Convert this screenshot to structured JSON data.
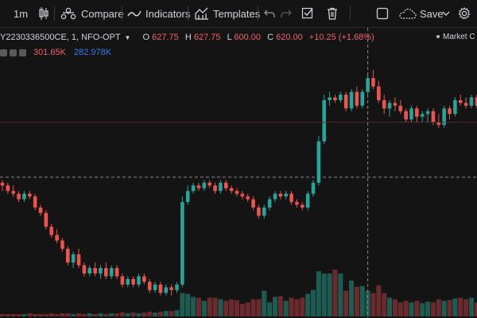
{
  "toolbar": {
    "interval": "1m",
    "compare_label": "Compare",
    "indicators_label": "Indicators",
    "templates_label": "Templates",
    "save_label": "Save",
    "icons": [
      "candles-icon",
      "compare-icon",
      "indicators-icon",
      "templates-icon",
      "undo-icon",
      "redo-icon",
      "checkbox-icon",
      "trash-icon",
      "layout-icon",
      "cloud-icon",
      "chevron-down-icon",
      "settings-icon"
    ]
  },
  "legend": {
    "symbol": "Y2230336500CE, 1, NFO-OPT",
    "open_label": "O",
    "open": "627.75",
    "high_label": "H",
    "high": "627.75",
    "low_label": "L",
    "low": "600.00",
    "close_label": "C",
    "close": "620.00",
    "change": "+10.25 (+1.68%)",
    "market_status": "Market C"
  },
  "volume": {
    "value_a": "301.65K",
    "value_b": "282.978K"
  },
  "colors": {
    "up": "#26a69a",
    "down": "#ef5350",
    "background": "#141414",
    "volume_blue": "#3d7bf2"
  },
  "chart_data": {
    "type": "candlestick",
    "series": [
      {
        "name": "price",
        "ohlc": [
          [
            0,
            600,
            601,
            597,
            599
          ],
          [
            1,
            599,
            600,
            596,
            597
          ],
          [
            2,
            597,
            599,
            595,
            596
          ],
          [
            3,
            596,
            597,
            593,
            594
          ],
          [
            4,
            594,
            597,
            593,
            596
          ],
          [
            5,
            596,
            597,
            594,
            595
          ],
          [
            6,
            595,
            596,
            590,
            591
          ],
          [
            7,
            591,
            592,
            588,
            589
          ],
          [
            8,
            589,
            590,
            583,
            584
          ],
          [
            9,
            584,
            585,
            580,
            581
          ],
          [
            10,
            581,
            583,
            578,
            579
          ],
          [
            11,
            579,
            580,
            575,
            576
          ],
          [
            12,
            576,
            577,
            570,
            571
          ],
          [
            13,
            571,
            575,
            569,
            574
          ],
          [
            14,
            574,
            576,
            569,
            570
          ],
          [
            15,
            570,
            571,
            566,
            567
          ],
          [
            16,
            567,
            570,
            566,
            569
          ],
          [
            17,
            569,
            571,
            566,
            567
          ],
          [
            18,
            567,
            570,
            565,
            569
          ],
          [
            19,
            569,
            571,
            565,
            566
          ],
          [
            20,
            566,
            570,
            565,
            569
          ],
          [
            21,
            569,
            570,
            565,
            566
          ],
          [
            22,
            566,
            567,
            562,
            563
          ],
          [
            23,
            563,
            566,
            562,
            565
          ],
          [
            24,
            565,
            566,
            562,
            563
          ],
          [
            25,
            563,
            567,
            562,
            566
          ],
          [
            26,
            566,
            567,
            563,
            564
          ],
          [
            27,
            564,
            565,
            560,
            561
          ],
          [
            28,
            561,
            564,
            560,
            563
          ],
          [
            29,
            563,
            564,
            559,
            560
          ],
          [
            30,
            560,
            563,
            559,
            562
          ],
          [
            31,
            562,
            563,
            559,
            561
          ],
          [
            32,
            561,
            564,
            560,
            563
          ],
          [
            33,
            563,
            595,
            562,
            593
          ],
          [
            34,
            593,
            599,
            592,
            597
          ],
          [
            35,
            597,
            600,
            596,
            599
          ],
          [
            36,
            599,
            600,
            597,
            598
          ],
          [
            37,
            598,
            601,
            597,
            600
          ],
          [
            38,
            600,
            601,
            598,
            599
          ],
          [
            39,
            599,
            600,
            596,
            597
          ],
          [
            40,
            597,
            601,
            596,
            600
          ],
          [
            41,
            600,
            601,
            597,
            598
          ],
          [
            42,
            598,
            599,
            596,
            597
          ],
          [
            43,
            597,
            598,
            595,
            596
          ],
          [
            44,
            596,
            597,
            594,
            595
          ],
          [
            45,
            595,
            596,
            593,
            594
          ],
          [
            46,
            594,
            595,
            590,
            591
          ],
          [
            47,
            591,
            592,
            587,
            588
          ],
          [
            48,
            588,
            592,
            587,
            591
          ],
          [
            49,
            591,
            595,
            590,
            594
          ],
          [
            50,
            594,
            597,
            593,
            596
          ],
          [
            51,
            596,
            597,
            594,
            595
          ],
          [
            52,
            595,
            597,
            594,
            596
          ],
          [
            53,
            596,
            597,
            592,
            593
          ],
          [
            54,
            593,
            594,
            591,
            592
          ],
          [
            55,
            592,
            593,
            590,
            591
          ],
          [
            56,
            591,
            597,
            590,
            596
          ],
          [
            57,
            596,
            601,
            595,
            600
          ],
          [
            58,
            600,
            617,
            599,
            615
          ],
          [
            59,
            615,
            632,
            614,
            630
          ],
          [
            60,
            630,
            633,
            628,
            631
          ],
          [
            61,
            631,
            632,
            629,
            630
          ],
          [
            62,
            630,
            633,
            629,
            632
          ],
          [
            63,
            632,
            633,
            626,
            627
          ],
          [
            64,
            627,
            634,
            626,
            633
          ],
          [
            65,
            633,
            635,
            627,
            628
          ],
          [
            66,
            628,
            634,
            627,
            633
          ],
          [
            67,
            633,
            639,
            632,
            638
          ],
          [
            68,
            638,
            641,
            634,
            635
          ],
          [
            69,
            635,
            637,
            629,
            630
          ],
          [
            70,
            630,
            632,
            625,
            627
          ],
          [
            71,
            627,
            630,
            624,
            629
          ],
          [
            72,
            629,
            631,
            626,
            628
          ],
          [
            73,
            628,
            630,
            625,
            626
          ],
          [
            74,
            626,
            627,
            622,
            623
          ],
          [
            75,
            623,
            628,
            622,
            627
          ],
          [
            76,
            627,
            628,
            622,
            624
          ],
          [
            77,
            624,
            626,
            622,
            625
          ],
          [
            78,
            625,
            627,
            622,
            626
          ],
          [
            79,
            626,
            627,
            621,
            622
          ],
          [
            80,
            622,
            625,
            620,
            621
          ],
          [
            81,
            621,
            628,
            620,
            627
          ],
          [
            82,
            627,
            628,
            623,
            625
          ],
          [
            83,
            625,
            631,
            624,
            630
          ],
          [
            84,
            630,
            632,
            628,
            629
          ],
          [
            85,
            629,
            631,
            627,
            628
          ],
          [
            86,
            628,
            632,
            627,
            631
          ],
          [
            87,
            631,
            632,
            627,
            628
          ]
        ]
      },
      {
        "name": "volume",
        "values": [
          3,
          3,
          3,
          3,
          3,
          4,
          3,
          3,
          3,
          4,
          3,
          4,
          4,
          3,
          4,
          3,
          4,
          3,
          4,
          3,
          4,
          4,
          5,
          4,
          5,
          4,
          5,
          6,
          5,
          6,
          7,
          7,
          8,
          30,
          29,
          25,
          24,
          20,
          24,
          24,
          22,
          20,
          22,
          21,
          16,
          18,
          22,
          22,
          33,
          18,
          25,
          26,
          20,
          24,
          22,
          24,
          29,
          34,
          58,
          55,
          55,
          60,
          55,
          33,
          46,
          38,
          39,
          33,
          30,
          40,
          30,
          24,
          22,
          18,
          20,
          18,
          20,
          17,
          19,
          18,
          22,
          20,
          21,
          23,
          24,
          22,
          24,
          18
        ]
      }
    ],
    "price_range": [
      552,
      656
    ],
    "volume_range": [
      0,
      100
    ],
    "crosshair": {
      "price": 602,
      "bar": 67
    },
    "horizontal_line": 622,
    "grid": false
  }
}
